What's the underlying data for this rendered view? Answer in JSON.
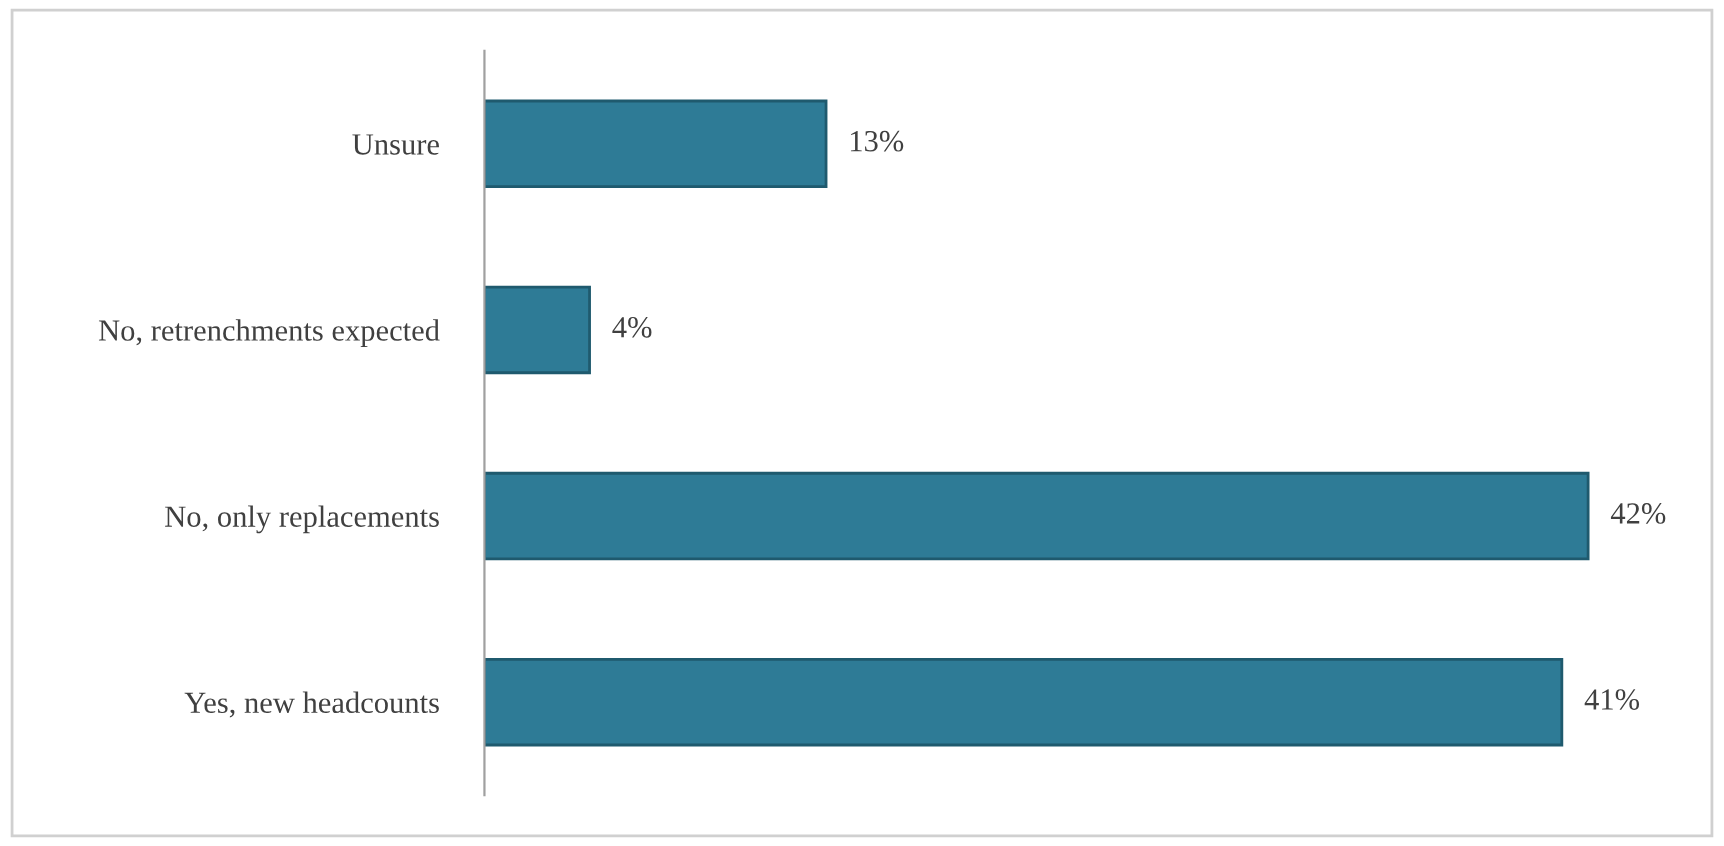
{
  "chart_data": {
    "type": "bar",
    "orientation": "horizontal",
    "categories": [
      "Unsure",
      "No, retrenchments expected",
      "No, only replacements",
      "Yes, new headcounts"
    ],
    "values": [
      13,
      4,
      42,
      41
    ],
    "value_labels": [
      "13%",
      "4%",
      "42%",
      "41%"
    ],
    "color": "#2e7b96",
    "grid": false,
    "legend": false
  }
}
